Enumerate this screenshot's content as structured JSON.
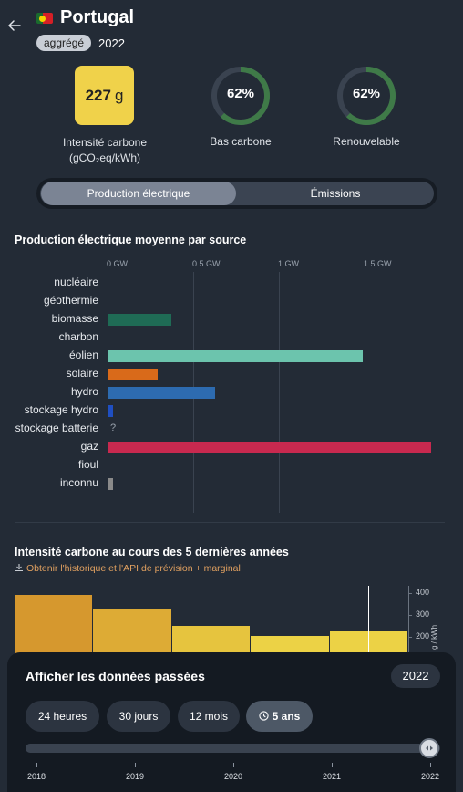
{
  "header": {
    "country": "Portugal",
    "aggregated_label": "aggrégé",
    "year": "2022",
    "back_icon": "arrow-left-icon",
    "flag_icon": "portugal-flag-icon"
  },
  "metrics": {
    "carbon_intensity_value": "227",
    "carbon_intensity_unit": "g",
    "carbon_intensity_label_line1": "Intensité carbone",
    "carbon_intensity_label_line2": "(gCO₂eq/kWh)",
    "low_carbon_value": "62%",
    "low_carbon_fraction": 0.62,
    "low_carbon_label": "Bas carbone",
    "renewable_value": "62%",
    "renewable_fraction": 0.62,
    "renewable_label": "Renouvelable",
    "colors": {
      "intensity_box": "#f0d24a",
      "ring_fill": "#3f7a48",
      "ring_track": "#3a4350"
    }
  },
  "toggle": {
    "options": [
      "Production électrique",
      "Émissions"
    ],
    "active": "Production électrique"
  },
  "production_chart": {
    "title": "Production électrique moyenne par source",
    "chart_data": {
      "type": "bar",
      "orientation": "horizontal",
      "title": "Production électrique moyenne par source",
      "unit": "GW",
      "xlim": [
        0,
        1.9
      ],
      "ticks": [
        "0 GW",
        "0.5 GW",
        "1 GW",
        "1.5 GW"
      ],
      "tick_values": [
        0,
        0.5,
        1,
        1.5
      ],
      "categories": [
        "nucléaire",
        "géothermie",
        "biomasse",
        "charbon",
        "éolien",
        "solaire",
        "hydro",
        "stockage hydro",
        "stockage batterie",
        "gaz",
        "fioul",
        "inconnu"
      ],
      "values": [
        0,
        0,
        0.37,
        0,
        1.49,
        0.29,
        0.63,
        0.03,
        null,
        1.89,
        0,
        0.03
      ],
      "colors": [
        "#000000",
        "#000000",
        "#1f6b55",
        "#000000",
        "#6cc4ad",
        "#d96a1a",
        "#2d6bb0",
        "#1f4fc2",
        "#000000",
        "#c8294f",
        "#000000",
        "#8a8a8a"
      ],
      "missing_marker": "?"
    }
  },
  "history_chart": {
    "title": "Intensité carbone au cours des 5 dernières années",
    "download_link": "Obtenir l'historique et l'API de prévision + marginal",
    "download_icon": "download-icon",
    "chart_data": {
      "type": "bar",
      "title": "Intensité carbone au cours des 5 dernières années",
      "categories": [
        "2018",
        "2019",
        "2020",
        "2021",
        "2022"
      ],
      "values": [
        390,
        330,
        250,
        205,
        227
      ],
      "colors": [
        "#d6982e",
        "#ddab35",
        "#e6c43e",
        "#ecd245",
        "#ecd245"
      ],
      "ylabel": "g / kWh",
      "yticks": [
        "400",
        "300",
        "200"
      ],
      "ytick_values": [
        400,
        300,
        200
      ],
      "ylim": [
        0,
        460
      ],
      "selected_marker": "2022"
    }
  },
  "history_panel": {
    "title": "Afficher les données passées",
    "selected_year": "2022",
    "ranges": [
      "24 heures",
      "30 jours",
      "12 mois",
      "5 ans"
    ],
    "active_range": "5 ans",
    "active_range_icon": "clock-icon",
    "slider_years": [
      "2018",
      "2019",
      "2020",
      "2021",
      "2022"
    ],
    "slider_value": "2022",
    "slider_thumb_icon": "arrows-left-right-icon"
  }
}
